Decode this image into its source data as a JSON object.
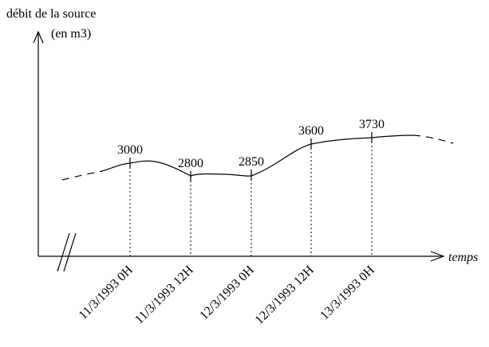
{
  "chart_data": {
    "type": "line",
    "ylabel_line1": "débit de la source",
    "ylabel_line2": "(en m3)",
    "xlabel": "temps",
    "x": [
      "11/3/1993 0H",
      "11/3/1993 12H",
      "12/3/1993 0H",
      "12/3/1993 12H",
      "13/3/1993 0H"
    ],
    "values": [
      3000,
      2800,
      2850,
      3600,
      3730
    ],
    "value_labels": [
      "3000",
      "2800",
      "2850",
      "3600",
      "3730"
    ],
    "axis_break": true,
    "grid": false
  }
}
